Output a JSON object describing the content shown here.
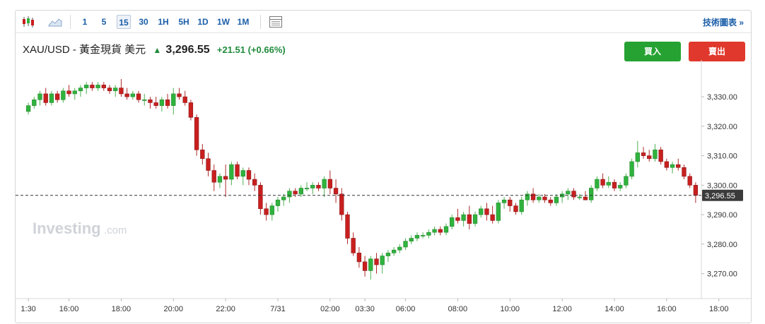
{
  "toolbar": {
    "timeframes": [
      "1",
      "5",
      "15",
      "30",
      "1H",
      "5H",
      "1D",
      "1W",
      "1M"
    ],
    "active_timeframe": "15",
    "tech_link": "技術圖表 »"
  },
  "quote": {
    "symbol": "XAU/USD - 黃金現貨 美元",
    "price": "3,296.55",
    "change": "+21.51 (+0.66%)",
    "direction": "up"
  },
  "buttons": {
    "buy": "買入",
    "sell": "賣出"
  },
  "watermark": {
    "brand": "Investing",
    "suffix": ".com"
  },
  "colors": {
    "up": "#2fb33d",
    "down": "#c91f1f",
    "accent": "#1b5ea8"
  },
  "chart_data": {
    "type": "candlestick",
    "ylim": [
      3262,
      3342
    ],
    "y_ticks": [
      "3,270.00",
      "3,280.00",
      "3,290.00",
      "3,300.00",
      "3,310.00",
      "3,320.00",
      "3,330.00"
    ],
    "y_tick_values": [
      3270,
      3280,
      3290,
      3300,
      3310,
      3320,
      3330
    ],
    "last_price": 3296.55,
    "last_price_label": "3,296.55",
    "x_ticks": [
      {
        "label": "1:30",
        "i": 0
      },
      {
        "label": "16:00",
        "i": 7
      },
      {
        "label": "18:00",
        "i": 16
      },
      {
        "label": "20:00",
        "i": 25
      },
      {
        "label": "22:00",
        "i": 34
      },
      {
        "label": "7/31",
        "i": 43
      },
      {
        "label": "02:00",
        "i": 52
      },
      {
        "label": "03:30",
        "i": 58
      },
      {
        "label": "06:00",
        "i": 65
      },
      {
        "label": "08:00",
        "i": 74
      },
      {
        "label": "10:00",
        "i": 83
      },
      {
        "label": "12:00",
        "i": 92
      },
      {
        "label": "14:00",
        "i": 101
      },
      {
        "label": "16:00",
        "i": 110
      },
      {
        "label": "18:00",
        "i": 119
      }
    ],
    "candles": [
      [
        3325,
        3328,
        3324,
        3327
      ],
      [
        3327,
        3330,
        3326,
        3329
      ],
      [
        3329,
        3332,
        3327,
        3331
      ],
      [
        3331,
        3333,
        3327,
        3328
      ],
      [
        3328,
        3332,
        3327,
        3331
      ],
      [
        3331,
        3332,
        3328,
        3329
      ],
      [
        3329,
        3333,
        3328,
        3332
      ],
      [
        3332,
        3334,
        3330,
        3331
      ],
      [
        3331,
        3333,
        3329,
        3332
      ],
      [
        3332,
        3334,
        3330,
        3333
      ],
      [
        3333,
        3335,
        3331,
        3334
      ],
      [
        3334,
        3335,
        3332,
        3333
      ],
      [
        3333,
        3335,
        3332,
        3334
      ],
      [
        3334,
        3335,
        3332,
        3333
      ],
      [
        3333,
        3334,
        3331,
        3332
      ],
      [
        3332,
        3334,
        3330,
        3333
      ],
      [
        3333,
        3336,
        3330,
        3331
      ],
      [
        3331,
        3333,
        3329,
        3330
      ],
      [
        3330,
        3332,
        3329,
        3331
      ],
      [
        3331,
        3332,
        3328,
        3329
      ],
      [
        3329,
        3331,
        3327,
        3329
      ],
      [
        3329,
        3330,
        3326,
        3328
      ],
      [
        3328,
        3330,
        3326,
        3327
      ],
      [
        3327,
        3330,
        3325,
        3329
      ],
      [
        3329,
        3331,
        3326,
        3327
      ],
      [
        3327,
        3333,
        3324,
        3331
      ],
      [
        3331,
        3333,
        3329,
        3330
      ],
      [
        3330,
        3332,
        3327,
        3328
      ],
      [
        3328,
        3329,
        3322,
        3323
      ],
      [
        3323,
        3324,
        3310,
        3312
      ],
      [
        3312,
        3314,
        3307,
        3309
      ],
      [
        3309,
        3311,
        3303,
        3305
      ],
      [
        3305,
        3307,
        3298,
        3301
      ],
      [
        3301,
        3304,
        3299,
        3303
      ],
      [
        3303,
        3307,
        3296,
        3302
      ],
      [
        3302,
        3308,
        3300,
        3307
      ],
      [
        3307,
        3308,
        3302,
        3303
      ],
      [
        3303,
        3306,
        3300,
        3305
      ],
      [
        3305,
        3306,
        3300,
        3302
      ],
      [
        3302,
        3304,
        3298,
        3300
      ],
      [
        3300,
        3301,
        3290,
        3292
      ],
      [
        3292,
        3294,
        3288,
        3290
      ],
      [
        3290,
        3294,
        3288,
        3293
      ],
      [
        3293,
        3296,
        3291,
        3295
      ],
      [
        3295,
        3297,
        3293,
        3296
      ],
      [
        3296,
        3299,
        3294,
        3298
      ],
      [
        3298,
        3299,
        3296,
        3297
      ],
      [
        3297,
        3300,
        3296,
        3299
      ],
      [
        3299,
        3301,
        3298,
        3299
      ],
      [
        3299,
        3301,
        3297,
        3300
      ],
      [
        3300,
        3301,
        3298,
        3299
      ],
      [
        3299,
        3303,
        3296,
        3302
      ],
      [
        3302,
        3305,
        3297,
        3299
      ],
      [
        3299,
        3302,
        3294,
        3297
      ],
      [
        3297,
        3299,
        3288,
        3290
      ],
      [
        3290,
        3291,
        3280,
        3282
      ],
      [
        3282,
        3284,
        3276,
        3277
      ],
      [
        3277,
        3279,
        3272,
        3274
      ],
      [
        3274,
        3276,
        3269,
        3271
      ],
      [
        3271,
        3276,
        3268,
        3275
      ],
      [
        3275,
        3277,
        3270,
        3273
      ],
      [
        3273,
        3277,
        3270,
        3276
      ],
      [
        3276,
        3278,
        3274,
        3277
      ],
      [
        3277,
        3279,
        3276,
        3278
      ],
      [
        3278,
        3280,
        3277,
        3279
      ],
      [
        3279,
        3282,
        3278,
        3281
      ],
      [
        3281,
        3283,
        3280,
        3282
      ],
      [
        3282,
        3284,
        3281,
        3283
      ],
      [
        3283,
        3284,
        3282,
        3283
      ],
      [
        3283,
        3285,
        3282,
        3284
      ],
      [
        3284,
        3286,
        3283,
        3285
      ],
      [
        3285,
        3286,
        3283,
        3284
      ],
      [
        3284,
        3287,
        3283,
        3286
      ],
      [
        3286,
        3290,
        3285,
        3289
      ],
      [
        3289,
        3292,
        3287,
        3288
      ],
      [
        3288,
        3291,
        3286,
        3290
      ],
      [
        3290,
        3293,
        3285,
        3287
      ],
      [
        3287,
        3291,
        3286,
        3290
      ],
      [
        3290,
        3293,
        3289,
        3292
      ],
      [
        3292,
        3294,
        3288,
        3290
      ],
      [
        3290,
        3293,
        3287,
        3288
      ],
      [
        3288,
        3295,
        3287,
        3294
      ],
      [
        3294,
        3296,
        3292,
        3295
      ],
      [
        3295,
        3296,
        3291,
        3293
      ],
      [
        3293,
        3294,
        3290,
        3291
      ],
      [
        3291,
        3296,
        3290,
        3295
      ],
      [
        3295,
        3298,
        3293,
        3297
      ],
      [
        3297,
        3299,
        3294,
        3295
      ],
      [
        3295,
        3297,
        3294,
        3296
      ],
      [
        3296,
        3297,
        3294,
        3295
      ],
      [
        3295,
        3296,
        3293,
        3294
      ],
      [
        3294,
        3297,
        3293,
        3296
      ],
      [
        3296,
        3298,
        3294,
        3297
      ],
      [
        3297,
        3299,
        3295,
        3298
      ],
      [
        3298,
        3299,
        3295,
        3296
      ],
      [
        3296,
        3297,
        3295,
        3296
      ],
      [
        3296,
        3298,
        3295,
        3295
      ],
      [
        3295,
        3300,
        3294,
        3299
      ],
      [
        3299,
        3303,
        3298,
        3302
      ],
      [
        3302,
        3304,
        3299,
        3300
      ],
      [
        3300,
        3303,
        3299,
        3301
      ],
      [
        3301,
        3302,
        3298,
        3299
      ],
      [
        3299,
        3301,
        3298,
        3300
      ],
      [
        3300,
        3304,
        3299,
        3303
      ],
      [
        3303,
        3309,
        3302,
        3308
      ],
      [
        3308,
        3315,
        3306,
        3311
      ],
      [
        3311,
        3313,
        3309,
        3310
      ],
      [
        3310,
        3312,
        3308,
        3309
      ],
      [
        3309,
        3314,
        3308,
        3312
      ],
      [
        3312,
        3313,
        3307,
        3308
      ],
      [
        3308,
        3309,
        3305,
        3306
      ],
      [
        3306,
        3308,
        3304,
        3307
      ],
      [
        3307,
        3309,
        3305,
        3306
      ],
      [
        3306,
        3307,
        3302,
        3303
      ],
      [
        3303,
        3304,
        3299,
        3300
      ],
      [
        3300,
        3301,
        3294,
        3296.55
      ]
    ]
  }
}
